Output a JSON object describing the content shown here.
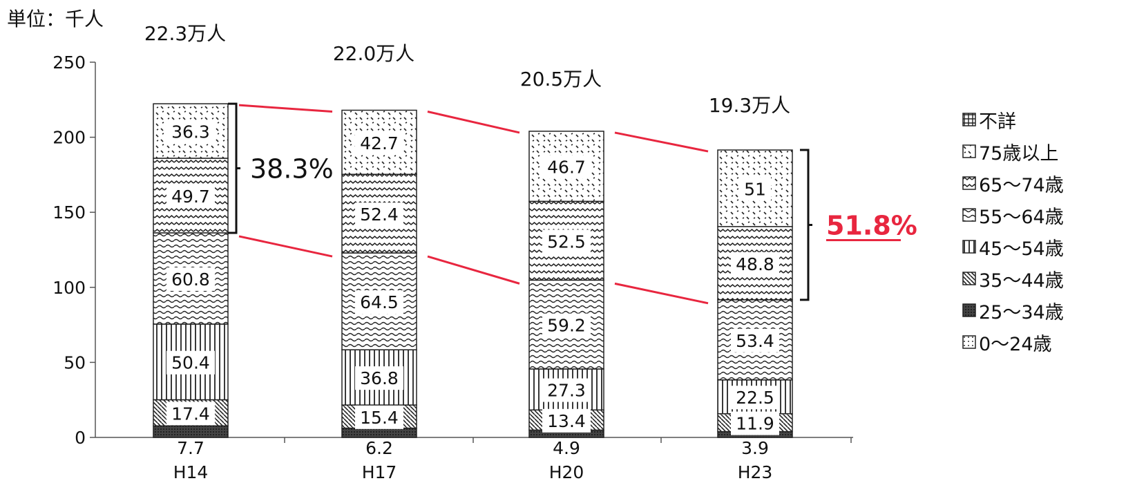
{
  "unit_label": "単位：千人",
  "chart_data": {
    "type": "bar",
    "stacked": true,
    "categories": [
      "H14",
      "H17",
      "H20",
      "H23"
    ],
    "totals_labels": [
      "22.3万人",
      "22.0万人",
      "20.5万人",
      "19.3万人"
    ],
    "ylim": [
      0,
      250
    ],
    "yticks": [
      0,
      50,
      100,
      150,
      200,
      250
    ],
    "series": [
      {
        "name": "0～24歳",
        "pattern": "dots",
        "values": [
          null,
          null,
          null,
          null
        ]
      },
      {
        "name": "25～34歳",
        "pattern": "dark",
        "values": [
          7.7,
          6.2,
          4.9,
          3.9
        ],
        "label_outside": true
      },
      {
        "name": "35～44歳",
        "pattern": "diag",
        "values": [
          17.4,
          15.4,
          13.4,
          11.9
        ]
      },
      {
        "name": "45～54歳",
        "pattern": "vert",
        "values": [
          50.4,
          36.8,
          27.3,
          22.5
        ]
      },
      {
        "name": "55～64歳",
        "pattern": "wave",
        "values": [
          60.8,
          64.5,
          59.2,
          53.4
        ]
      },
      {
        "name": "65～74歳",
        "pattern": "zigzag",
        "values": [
          49.7,
          52.4,
          52.5,
          48.8
        ]
      },
      {
        "name": "75歳以上",
        "pattern": "sparse",
        "values": [
          36.3,
          42.7,
          46.7,
          51
        ]
      },
      {
        "name": "不詳",
        "pattern": "grid",
        "values": [
          null,
          null,
          null,
          null
        ]
      }
    ],
    "value_labels": [
      [
        "7.7",
        "17.4",
        "50.4",
        "60.8",
        "49.7",
        "36.3"
      ],
      [
        "6.2",
        "15.4",
        "36.8",
        "64.5",
        "52.4",
        "42.7"
      ],
      [
        "4.9",
        "13.4",
        "27.3",
        "59.2",
        "52.5",
        "46.7"
      ],
      [
        "3.9",
        "11.9",
        "22.5",
        "53.4",
        "48.8",
        "51"
      ]
    ],
    "legend_order": [
      "不詳",
      "75歳以上",
      "65～74歳",
      "55～64歳",
      "45～54歳",
      "35～44歳",
      "25～34歳",
      "0～24歳"
    ],
    "annotations": {
      "first_share": "38.3%",
      "last_share": "51.8%",
      "highlight_color": "#e8263f"
    },
    "grid": false,
    "legend_position": "right"
  }
}
